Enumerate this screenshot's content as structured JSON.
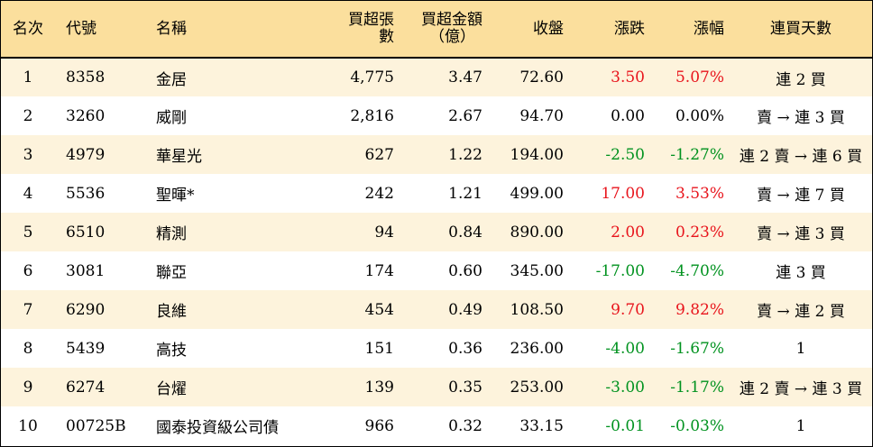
{
  "colors": {
    "header_bg": "#fbdf9d",
    "odd_row_bg": "#fdf3dc",
    "up": "#e8141c",
    "down": "#00921f"
  },
  "headers": {
    "rank": "名次",
    "code": "代號",
    "name": "名稱",
    "volume": "買超張數",
    "amount_line1": "買超金額",
    "amount_line2": "（億）",
    "close": "收盤",
    "change": "漲跌",
    "pct": "漲幅",
    "days": "連買天數"
  },
  "rows": [
    {
      "rank": "1",
      "code": "8358",
      "name": "金居",
      "volume": "4,775",
      "amount": "3.47",
      "close": "72.60",
      "change": "3.50",
      "pct": "5.07%",
      "days": "連 2 買",
      "trend": "up"
    },
    {
      "rank": "2",
      "code": "3260",
      "name": "威剛",
      "volume": "2,816",
      "amount": "2.67",
      "close": "94.70",
      "change": "0.00",
      "pct": "0.00%",
      "days": "賣 → 連 3 買",
      "trend": "flat"
    },
    {
      "rank": "3",
      "code": "4979",
      "name": "華星光",
      "volume": "627",
      "amount": "1.22",
      "close": "194.00",
      "change": "-2.50",
      "pct": "-1.27%",
      "days": "連 2 賣 → 連 6 買",
      "trend": "down"
    },
    {
      "rank": "4",
      "code": "5536",
      "name": "聖暉*",
      "volume": "242",
      "amount": "1.21",
      "close": "499.00",
      "change": "17.00",
      "pct": "3.53%",
      "days": "賣 → 連 7 買",
      "trend": "up"
    },
    {
      "rank": "5",
      "code": "6510",
      "name": "精測",
      "volume": "94",
      "amount": "0.84",
      "close": "890.00",
      "change": "2.00",
      "pct": "0.23%",
      "days": "賣 → 連 3 買",
      "trend": "up"
    },
    {
      "rank": "6",
      "code": "3081",
      "name": "聯亞",
      "volume": "174",
      "amount": "0.60",
      "close": "345.00",
      "change": "-17.00",
      "pct": "-4.70%",
      "days": "連 3 買",
      "trend": "down"
    },
    {
      "rank": "7",
      "code": "6290",
      "name": "良維",
      "volume": "454",
      "amount": "0.49",
      "close": "108.50",
      "change": "9.70",
      "pct": "9.82%",
      "days": "賣 → 連 2 買",
      "trend": "up"
    },
    {
      "rank": "8",
      "code": "5439",
      "name": "高技",
      "volume": "151",
      "amount": "0.36",
      "close": "236.00",
      "change": "-4.00",
      "pct": "-1.67%",
      "days": "1",
      "trend": "down"
    },
    {
      "rank": "9",
      "code": "6274",
      "name": "台燿",
      "volume": "139",
      "amount": "0.35",
      "close": "253.00",
      "change": "-3.00",
      "pct": "-1.17%",
      "days": "連 2 賣 → 連 3 買",
      "trend": "down"
    },
    {
      "rank": "10",
      "code": "00725B",
      "name": "國泰投資級公司債",
      "volume": "966",
      "amount": "0.32",
      "close": "33.15",
      "change": "-0.01",
      "pct": "-0.03%",
      "days": "1",
      "trend": "down"
    }
  ]
}
